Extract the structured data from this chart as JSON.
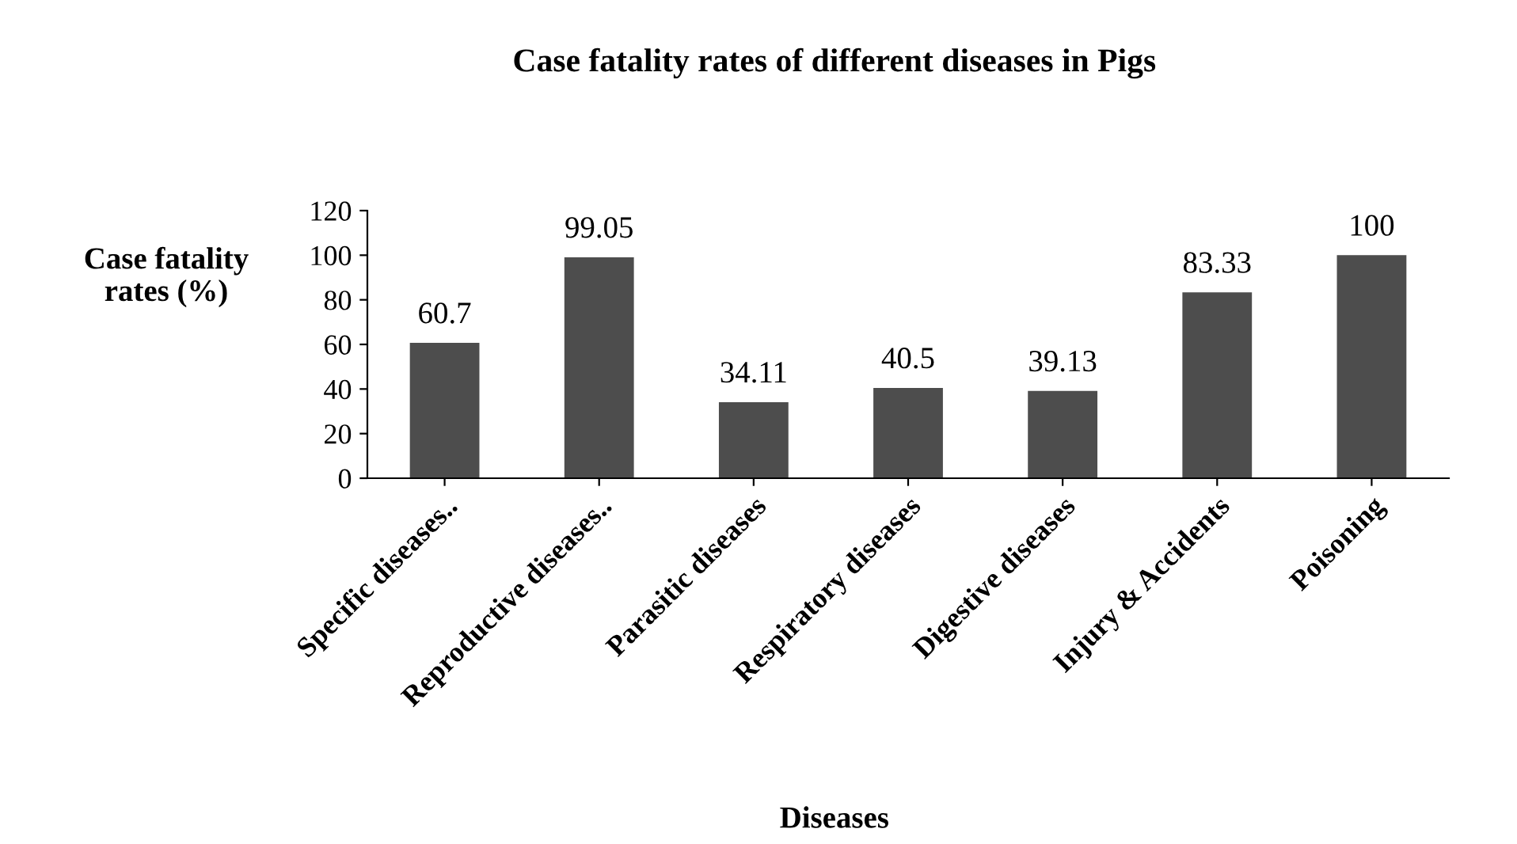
{
  "chart_data": {
    "type": "bar",
    "title": "Case fatality rates of different diseases in Pigs",
    "xlabel": "Diseases",
    "ylabel": "Case fatality\nrates (%)",
    "categories": [
      "Specific diseases..",
      "Reproductive diseases..",
      "Parasitic diseases",
      "Respiratory diseases",
      "Digestive diseases",
      "Injury & Accidents",
      "Poisoning"
    ],
    "values": [
      60.7,
      99.05,
      34.11,
      40.5,
      39.13,
      83.33,
      100
    ],
    "color": "#4d4d4d",
    "ylim": [
      0,
      120
    ],
    "yticks": [
      0,
      20,
      40,
      60,
      80,
      100,
      120
    ],
    "data_labels": true,
    "grid": false,
    "legend": false
  }
}
